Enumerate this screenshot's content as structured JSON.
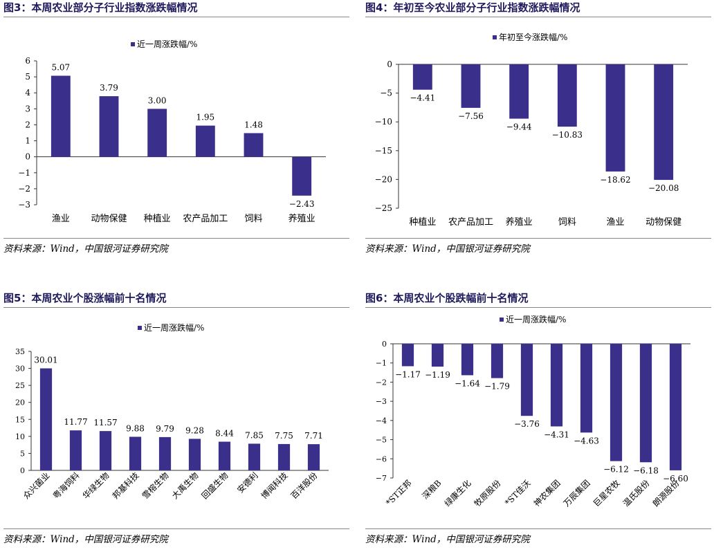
{
  "bar_color": "#3b2f8c",
  "title_color": "#1f1a5c",
  "source": "资料来源：Wind，中国银河证券研究院",
  "panels": [
    {
      "title": "图3：本周农业部分子行业指数涨跌幅情况",
      "legend": "近一周涨跌幅/%"
    },
    {
      "title": "图4：年初至今农业部分子行业指数涨跌幅情况",
      "legend": "年初至今涨跌幅/%"
    },
    {
      "title": "图5：本周农业个股涨幅前十名情况",
      "legend": "近一周涨跌幅/%"
    },
    {
      "title": "图6：本周农业个股跌幅前十名情况",
      "legend": "近一周涨跌幅/%"
    }
  ],
  "chart_data": [
    {
      "type": "bar",
      "title": "图3：本周农业部分子行业指数涨跌幅情况",
      "series": [
        {
          "name": "近一周涨跌幅/%",
          "values": [
            5.07,
            3.79,
            3.0,
            1.95,
            1.48,
            -2.43
          ]
        }
      ],
      "categories": [
        "渔业",
        "动物保健",
        "种植业",
        "农产品加工",
        "饲料",
        "养殖业"
      ],
      "value_labels": [
        "5.07",
        "3.79",
        "3.00",
        "1.95",
        "1.48",
        "−2.43"
      ],
      "yticks": [
        "6",
        "5",
        "4",
        "3",
        "2",
        "1",
        "0",
        "−1",
        "−2",
        "−3"
      ],
      "ylim": [
        -3,
        6
      ],
      "legend": "top-center",
      "grid": false
    },
    {
      "type": "bar",
      "title": "图4：年初至今农业部分子行业指数涨跌幅情况",
      "series": [
        {
          "name": "年初至今涨跌幅/%",
          "values": [
            -4.41,
            -7.56,
            -9.44,
            -10.83,
            -18.62,
            -20.08
          ]
        }
      ],
      "categories": [
        "种植业",
        "农产品加工",
        "养殖业",
        "饲料",
        "渔业",
        "动物保健"
      ],
      "value_labels": [
        "−4.41",
        "−7.56",
        "−9.44",
        "−10.83",
        "−18.62",
        "−20.08"
      ],
      "yticks": [
        "0",
        "−5",
        "−10",
        "−15",
        "−20",
        "−25"
      ],
      "ylim": [
        -25,
        0
      ],
      "legend": "top-center",
      "grid": false
    },
    {
      "type": "bar",
      "title": "图5：本周农业个股涨幅前十名情况",
      "series": [
        {
          "name": "近一周涨跌幅/%",
          "values": [
            30.01,
            11.77,
            11.57,
            9.88,
            9.79,
            9.28,
            8.44,
            7.85,
            7.75,
            7.71
          ]
        }
      ],
      "categories": [
        "众兴菌业",
        "粤海饲料",
        "华绿生物",
        "邦基科技",
        "雪榕生物",
        "大禹生物",
        "回盛生物",
        "安德利",
        "博闻科技",
        "百洋股份"
      ],
      "value_labels": [
        "30.01",
        "11.77",
        "11.57",
        "9.88",
        "9.79",
        "9.28",
        "8.44",
        "7.85",
        "7.75",
        "7.71"
      ],
      "yticks": [
        "35",
        "30",
        "25",
        "20",
        "15",
        "10",
        "5",
        "0"
      ],
      "ylim": [
        0,
        35
      ],
      "legend": "top-center",
      "grid": false
    },
    {
      "type": "bar",
      "title": "图6：本周农业个股跌幅前十名情况",
      "series": [
        {
          "name": "近一周涨跌幅/%",
          "values": [
            -1.17,
            -1.19,
            -1.64,
            -1.79,
            -3.76,
            -4.31,
            -4.63,
            -6.12,
            -6.18,
            -6.6
          ]
        }
      ],
      "categories": [
        "*ST正邦",
        "深粮B",
        "绿康生化",
        "牧原股份",
        "*ST佳沃",
        "神农集团",
        "万辰集团",
        "巨星农牧",
        "温氏股份",
        "朗源股份"
      ],
      "value_labels": [
        "−1.17",
        "−1.19",
        "−1.64",
        "−1.79",
        "−3.76",
        "−4.31",
        "−4.63",
        "−6.12",
        "−6.18",
        "−6.60"
      ],
      "yticks": [
        "0",
        "−1",
        "−2",
        "−3",
        "−4",
        "−5",
        "−6",
        "−7"
      ],
      "ylim": [
        -7,
        0
      ],
      "legend": "top-center",
      "grid": false
    }
  ]
}
